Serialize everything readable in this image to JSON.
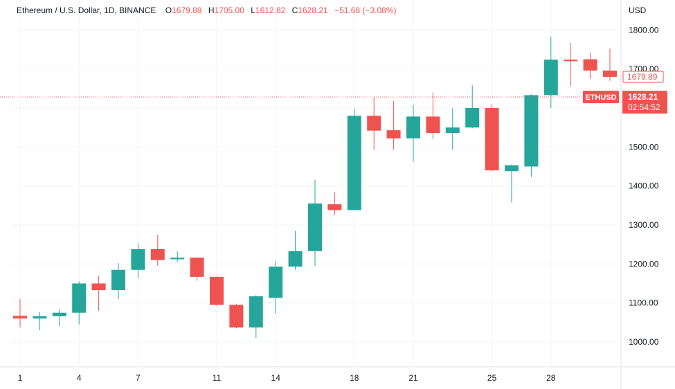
{
  "legend": {
    "symbol": "Ethereum / U.S. Dollar, 1D, BINANCE",
    "open_label": "O",
    "open": "1679.88",
    "high_label": "H",
    "high": "1705.00",
    "low_label": "L",
    "low": "1612.82",
    "close_label": "C",
    "close": "1628.21",
    "change": "−51.68 (−3.08%)",
    "value_color": "#ef5350"
  },
  "axis": {
    "currency": "USD"
  },
  "price_tags": {
    "prev": "1679.89",
    "symbol": "ETHUSD",
    "last": "1628.21",
    "countdown": "02:54:52"
  },
  "colors": {
    "up": "#26a69a",
    "down": "#ef5350",
    "grid": "#f0f3fa",
    "text": "#131722"
  },
  "chart_data": {
    "type": "candlestick",
    "title": "Ethereum / U.S. Dollar, 1D, BINANCE",
    "ylabel": "USD",
    "ylim": [
      900,
      1860
    ],
    "y_ticks": [
      "1000.00",
      "1100.00",
      "1200.00",
      "1300.00",
      "1400.00",
      "1500.00",
      "1600.00",
      "1700.00",
      "1800.00"
    ],
    "x_tick_labels": [
      {
        "day": 1,
        "label": "1"
      },
      {
        "day": 4,
        "label": "4"
      },
      {
        "day": 7,
        "label": "7"
      },
      {
        "day": 11,
        "label": "11"
      },
      {
        "day": 14,
        "label": "14"
      },
      {
        "day": 18,
        "label": "18"
      },
      {
        "day": 21,
        "label": "21"
      },
      {
        "day": 25,
        "label": "25"
      },
      {
        "day": 28,
        "label": "28"
      }
    ],
    "candles": [
      {
        "day": 1,
        "o": 1067,
        "h": 1110,
        "l": 1037,
        "c": 1060
      },
      {
        "day": 2,
        "o": 1060,
        "h": 1077,
        "l": 1030,
        "c": 1066
      },
      {
        "day": 3,
        "o": 1066,
        "h": 1085,
        "l": 1040,
        "c": 1075
      },
      {
        "day": 4,
        "o": 1075,
        "h": 1156,
        "l": 1045,
        "c": 1150
      },
      {
        "day": 5,
        "o": 1150,
        "h": 1170,
        "l": 1080,
        "c": 1133
      },
      {
        "day": 6,
        "o": 1133,
        "h": 1202,
        "l": 1110,
        "c": 1185
      },
      {
        "day": 7,
        "o": 1185,
        "h": 1253,
        "l": 1163,
        "c": 1238
      },
      {
        "day": 8,
        "o": 1238,
        "h": 1275,
        "l": 1195,
        "c": 1210
      },
      {
        "day": 9,
        "o": 1212,
        "h": 1232,
        "l": 1205,
        "c": 1216
      },
      {
        "day": 10,
        "o": 1216,
        "h": 1218,
        "l": 1157,
        "c": 1167
      },
      {
        "day": 11,
        "o": 1167,
        "h": 1168,
        "l": 1093,
        "c": 1095
      },
      {
        "day": 12,
        "o": 1095,
        "h": 1097,
        "l": 1035,
        "c": 1037
      },
      {
        "day": 13,
        "o": 1037,
        "h": 1120,
        "l": 1010,
        "c": 1117
      },
      {
        "day": 14,
        "o": 1113,
        "h": 1208,
        "l": 1073,
        "c": 1193
      },
      {
        "day": 15,
        "o": 1193,
        "h": 1285,
        "l": 1185,
        "c": 1233
      },
      {
        "day": 16,
        "o": 1233,
        "h": 1416,
        "l": 1195,
        "c": 1355
      },
      {
        "day": 17,
        "o": 1353,
        "h": 1383,
        "l": 1325,
        "c": 1338
      },
      {
        "day": 18,
        "o": 1338,
        "h": 1598,
        "l": 1338,
        "c": 1580
      },
      {
        "day": 19,
        "o": 1580,
        "h": 1627,
        "l": 1493,
        "c": 1542
      },
      {
        "day": 20,
        "o": 1543,
        "h": 1618,
        "l": 1493,
        "c": 1522
      },
      {
        "day": 21,
        "o": 1522,
        "h": 1608,
        "l": 1463,
        "c": 1578
      },
      {
        "day": 22,
        "o": 1578,
        "h": 1640,
        "l": 1520,
        "c": 1536
      },
      {
        "day": 23,
        "o": 1536,
        "h": 1600,
        "l": 1493,
        "c": 1550
      },
      {
        "day": 24,
        "o": 1550,
        "h": 1658,
        "l": 1548,
        "c": 1600
      },
      {
        "day": 25,
        "o": 1600,
        "h": 1609,
        "l": 1438,
        "c": 1440
      },
      {
        "day": 26,
        "o": 1438,
        "h": 1455,
        "l": 1358,
        "c": 1453
      },
      {
        "day": 27,
        "o": 1450,
        "h": 1635,
        "l": 1423,
        "c": 1633
      },
      {
        "day": 28,
        "o": 1633,
        "h": 1783,
        "l": 1600,
        "c": 1724
      },
      {
        "day": 29,
        "o": 1724,
        "h": 1767,
        "l": 1655,
        "c": 1720
      },
      {
        "day": 30,
        "o": 1725,
        "h": 1742,
        "l": 1675,
        "c": 1696
      },
      {
        "day": 31,
        "o": 1696,
        "h": 1752,
        "l": 1670,
        "c": 1680
      }
    ],
    "last_price": 1628.21,
    "prev_close": 1679.89,
    "grid": true
  }
}
